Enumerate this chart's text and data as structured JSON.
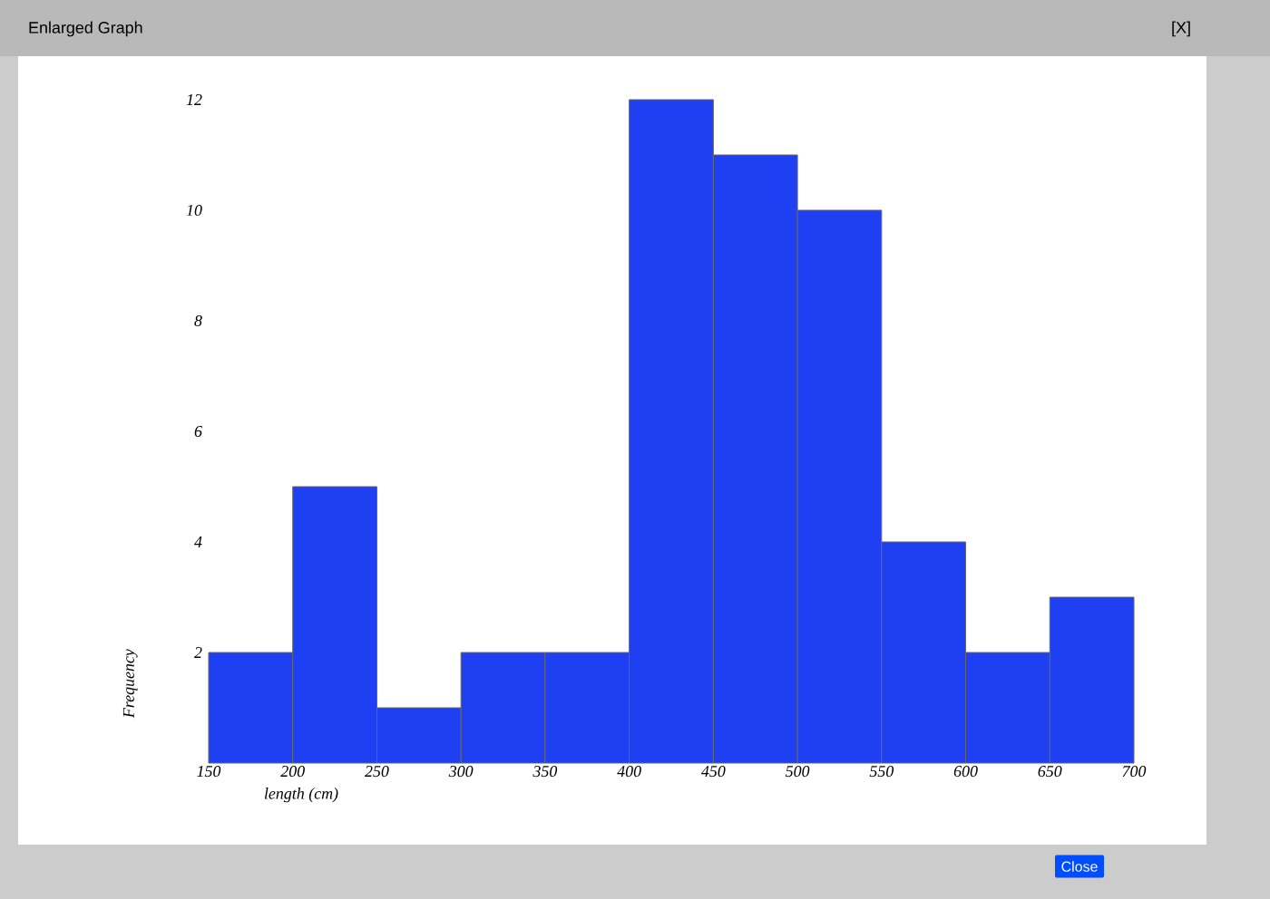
{
  "chart_data": {
    "type": "histogram",
    "title": "Enlarged Graph",
    "xlabel": "length (cm)",
    "ylabel": "Frequency",
    "bins": [
      150,
      200,
      250,
      300,
      350,
      400,
      450,
      500,
      550,
      600,
      650,
      700
    ],
    "values": [
      2,
      5,
      1,
      2,
      2,
      12,
      11,
      10,
      4,
      2,
      3
    ],
    "color": "#1f3ff2",
    "xlim": [
      150,
      700
    ],
    "ylim": [
      0,
      12
    ],
    "xticks": [
      150,
      200,
      250,
      300,
      350,
      400,
      450,
      500,
      550,
      600,
      650,
      700
    ],
    "yticks": [
      2,
      4,
      6,
      8,
      10,
      12
    ],
    "annotations": [
      "[X]",
      "Close"
    ]
  }
}
